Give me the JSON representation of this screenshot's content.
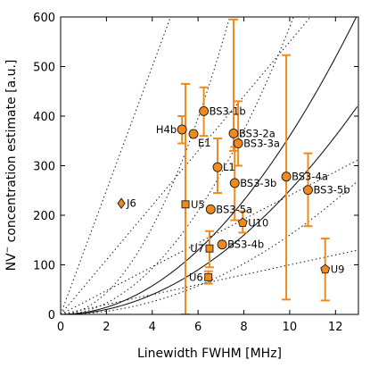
{
  "chart_data": {
    "type": "scatter",
    "xlabel": "Linewidth FWHM [MHz]",
    "ylabel_main": "NV",
    "ylabel_sup": "−",
    "ylabel_rest": "  concentration estimate [a.u.]",
    "xlim": [
      0,
      13
    ],
    "ylim": [
      0,
      600
    ],
    "x_ticks": [
      "0",
      "2",
      "4",
      "6",
      "8",
      "10",
      "12"
    ],
    "y_ticks": [
      "0",
      "100",
      "200",
      "300",
      "400",
      "500",
      "600"
    ],
    "grid": false,
    "colors": {
      "marker_fill": "#f08a1c",
      "marker_edge": "#1a1a1a",
      "errorbar": "#f08a1c",
      "curve": "#1a1a1a"
    },
    "points": [
      {
        "label": "H4b",
        "x": 5.3,
        "y": 373,
        "marker": "circle",
        "yerr": [
          345,
          400
        ],
        "label_side": "left"
      },
      {
        "label": "BS3-1b",
        "x": 6.25,
        "y": 410,
        "marker": "circle",
        "yerr": [
          360,
          458
        ],
        "label_side": "right"
      },
      {
        "label": "E1",
        "x": 5.8,
        "y": 364,
        "marker": "circle",
        "yerr": null,
        "label_side": "right-below"
      },
      {
        "label": "BS3-2a",
        "x": 7.55,
        "y": 365,
        "marker": "circle",
        "yerr": [
          330,
          595
        ],
        "label_side": "right"
      },
      {
        "label": "BS3-3a",
        "x": 7.75,
        "y": 345,
        "marker": "circle",
        "yerr": [
          300,
          430
        ],
        "label_side": "right"
      },
      {
        "label": "L1",
        "x": 6.85,
        "y": 297,
        "marker": "circle",
        "yerr": [
          245,
          355
        ],
        "label_side": "right"
      },
      {
        "label": "BS3-3b",
        "x": 7.6,
        "y": 265,
        "marker": "circle",
        "yerr": [
          190,
          338
        ],
        "label_side": "right"
      },
      {
        "label": "BS3-4a",
        "x": 9.85,
        "y": 278,
        "marker": "circle",
        "yerr": [
          30,
          523
        ],
        "label_side": "right"
      },
      {
        "label": "BS3-5b",
        "x": 10.8,
        "y": 251,
        "marker": "circle",
        "yerr": [
          178,
          325
        ],
        "label_side": "right"
      },
      {
        "label": "J6",
        "x": 2.65,
        "y": 224,
        "marker": "diamond",
        "yerr": null,
        "label_side": "right"
      },
      {
        "label": "U5",
        "x": 5.45,
        "y": 222,
        "marker": "square",
        "yerr": [
          0,
          465
        ],
        "label_side": "right"
      },
      {
        "label": "BS3-5a",
        "x": 6.55,
        "y": 212,
        "marker": "circle",
        "yerr": null,
        "label_side": "right"
      },
      {
        "label": "U10",
        "x": 7.95,
        "y": 185,
        "marker": "pentagon",
        "yerr": [
          165,
          208
        ],
        "label_side": "right"
      },
      {
        "label": "U7",
        "x": 6.5,
        "y": 133,
        "marker": "square",
        "yerr": [
          95,
          168
        ],
        "label_side": "left"
      },
      {
        "label": "BS3-4b",
        "x": 7.05,
        "y": 141,
        "marker": "circle",
        "yerr": null,
        "label_side": "right"
      },
      {
        "label": "U6",
        "x": 6.45,
        "y": 75,
        "marker": "square",
        "yerr": [
          62,
          87
        ],
        "label_side": "left"
      },
      {
        "label": "U9",
        "x": 11.55,
        "y": 91,
        "marker": "pentagon",
        "yerr": [
          28,
          153
        ],
        "label_side": "right"
      }
    ],
    "curves": [
      {
        "style": "solid",
        "k": 2.5
      },
      {
        "style": "solid",
        "k": 3.6
      },
      {
        "style": "dotted",
        "k": 1.6
      },
      {
        "style": "dotted",
        "k": 5.8
      },
      {
        "style": "dotted",
        "k": 11.0
      }
    ],
    "dotted_lines": [
      {
        "slope": 10.0
      },
      {
        "slope": 24.0
      },
      {
        "slope": 55.0
      },
      {
        "slope": 125.0
      }
    ]
  }
}
